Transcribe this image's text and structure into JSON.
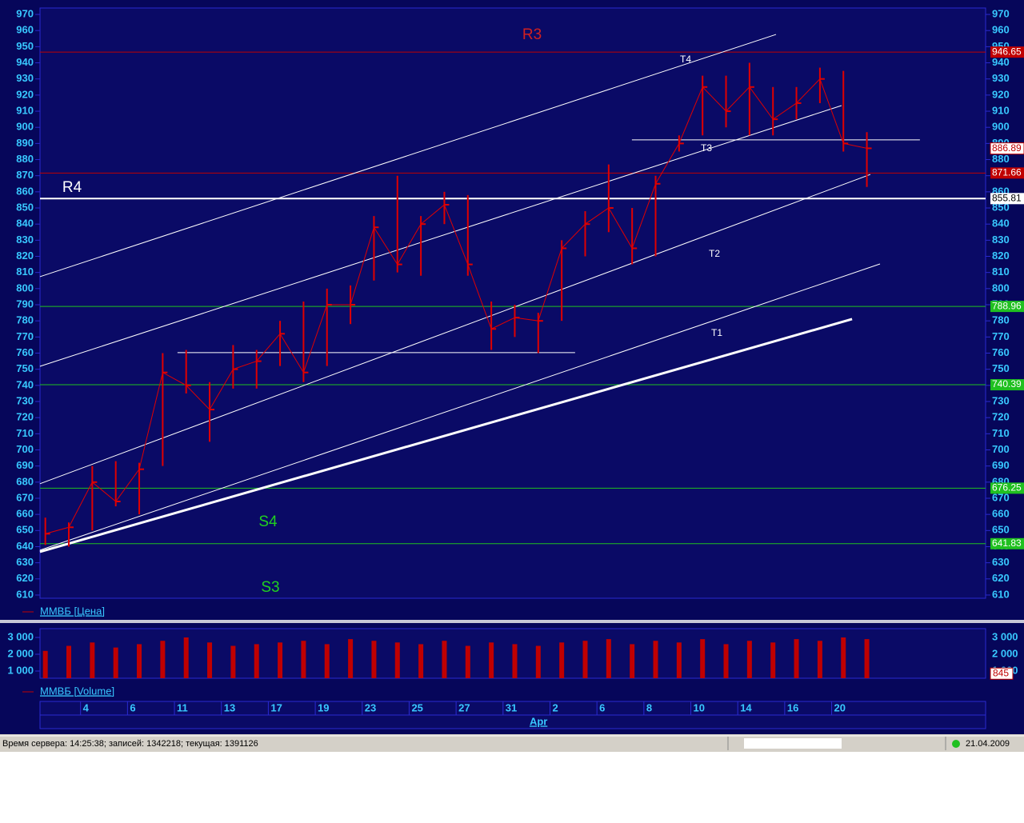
{
  "chart_data": [
    {
      "type": "hlc",
      "series": [
        {
          "name": "ММВБ [Цена]",
          "color": "#e00000",
          "high": [
            658,
            655,
            690,
            693,
            692,
            760,
            762,
            742,
            765,
            762,
            780,
            792,
            800,
            802,
            845,
            870,
            845,
            860,
            858,
            792,
            790,
            785,
            830,
            848,
            877,
            850,
            870,
            895,
            932,
            932,
            940,
            925,
            925,
            937,
            935,
            897
          ],
          "low": [
            641,
            640,
            650,
            665,
            660,
            690,
            735,
            705,
            738,
            738,
            752,
            742,
            752,
            778,
            805,
            810,
            808,
            840,
            808,
            762,
            770,
            760,
            780,
            820,
            835,
            815,
            820,
            885,
            895,
            900,
            895,
            895,
            905,
            915,
            885,
            863
          ],
          "values": [
            648,
            652,
            680,
            668,
            688,
            748,
            740,
            725,
            750,
            755,
            772,
            748,
            790,
            790,
            838,
            815,
            840,
            852,
            815,
            775,
            782,
            780,
            825,
            840,
            850,
            825,
            865,
            890,
            925,
            910,
            925,
            905,
            915,
            930,
            890,
            887
          ]
        }
      ],
      "ylim": [
        608,
        973
      ],
      "yticks": [
        610,
        620,
        630,
        640,
        650,
        660,
        670,
        680,
        690,
        700,
        710,
        720,
        730,
        740,
        750,
        760,
        770,
        780,
        790,
        800,
        810,
        820,
        830,
        840,
        850,
        860,
        870,
        880,
        890,
        900,
        910,
        920,
        930,
        940,
        950,
        960,
        970
      ],
      "last_price": 886.89,
      "levels": [
        {
          "value": 946.65,
          "color": "#c00000"
        },
        {
          "value": 871.66,
          "color": "#c00000"
        },
        {
          "value": 855.81,
          "color": "#ffffff"
        },
        {
          "value": 788.96,
          "color": "#20c020"
        },
        {
          "value": 740.39,
          "color": "#20c020"
        },
        {
          "value": 676.25,
          "color": "#20c020"
        },
        {
          "value": 641.83,
          "color": "#20c020"
        }
      ],
      "trendlines": [
        {
          "label": "T4",
          "points": [
            [
              0.27,
              807.4
            ],
            [
              31.63,
              957.6
            ]
          ]
        },
        {
          "points": [
            [
              0.27,
              751.8
            ],
            [
              34.42,
              913.5
            ]
          ]
        },
        {
          "label": "T2",
          "points": [
            [
              0.27,
              679.0
            ],
            [
              35.65,
              870.8
            ]
          ]
        },
        {
          "label": "T1",
          "points": [
            [
              0.27,
              637.8
            ],
            [
              36.06,
              815.3
            ]
          ]
        },
        {
          "points": [
            [
              0.27,
              636.8
            ],
            [
              34.87,
              781.1
            ]
          ],
          "width": 3
        },
        {
          "points": [
            [
              6.13,
              760.3
            ],
            [
              23.07,
              760.3
            ]
          ]
        },
        {
          "label": "T3",
          "points": [
            [
              25.49,
              892.2
            ],
            [
              37.76,
              892.2
            ]
          ]
        }
      ],
      "annotations": [
        {
          "text": "R3",
          "color": "#d02020"
        },
        {
          "text": "R4",
          "color": "#ffffff"
        },
        {
          "text": "S4",
          "color": "#20d020"
        },
        {
          "text": "S3",
          "color": "#20d020"
        }
      ]
    },
    {
      "type": "bar",
      "categories": [
        null,
        null,
        "4",
        null,
        "6",
        null,
        "11",
        null,
        "13",
        null,
        "17",
        null,
        "19",
        null,
        "23",
        null,
        "25",
        null,
        "27",
        null,
        "31",
        null,
        "2",
        null,
        "6",
        null,
        "8",
        null,
        "10",
        null,
        "14",
        null,
        "16",
        null,
        "20",
        null
      ],
      "months": [
        {
          "label": "Apr",
          "index": 21
        }
      ],
      "series": [
        {
          "name": "ММВБ [Volume]",
          "color": "#c00000",
          "values": [
            2200,
            2500,
            2700,
            2400,
            2600,
            2800,
            3000,
            2700,
            2500,
            2600,
            2700,
            2800,
            2600,
            2900,
            2800,
            2700,
            2600,
            2800,
            2500,
            2700,
            2600,
            2500,
            2700,
            2800,
            2900,
            2600,
            2800,
            2700,
            2900,
            2600,
            2800,
            2700,
            2900,
            2800,
            3000,
            2900
          ]
        }
      ],
      "ylim": [
        571,
        3524
      ],
      "yticks": [
        {
          "value": 1000,
          "label": "1 000"
        },
        {
          "value": 2000,
          "label": "2 000"
        },
        {
          "value": 3000,
          "label": "3 000"
        }
      ],
      "current_value": 845
    }
  ],
  "status_bar": {
    "text": "Время сервера: 14:25:38; записей: 1342218; текущая: 1391126",
    "date": "21.04.2009"
  }
}
